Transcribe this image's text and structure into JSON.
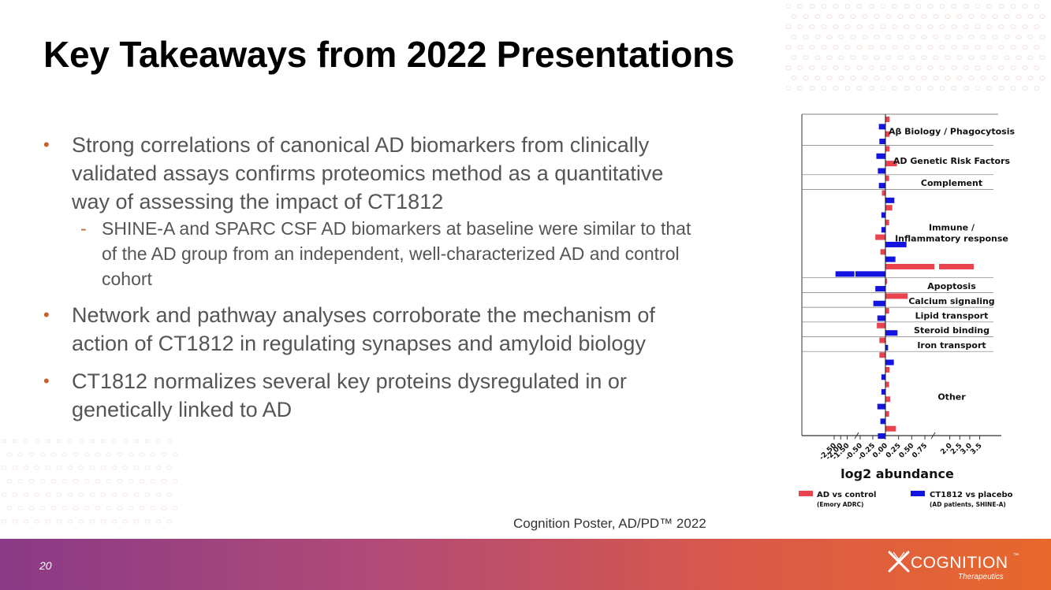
{
  "slide": {
    "title": "Key Takeaways from 2022 Presentations",
    "bullets": [
      {
        "text": "Strong correlations of canonical AD biomarkers from clinically validated assays confirms proteomics method as a quantitative way of assessing the impact of CT1812",
        "sub": "SHINE-A and SPARC CSF AD biomarkers at baseline were similar to that of the AD group from an independent, well-characterized AD and control cohort"
      },
      {
        "text": "Network and pathway analyses corroborate the mechanism of action of CT1812 in regulating synapses and amyloid biology"
      },
      {
        "text": "CT1812 normalizes several key proteins dysregulated in or genetically linked to AD"
      }
    ],
    "bullet_mark": "•",
    "sub_mark": "-",
    "citation": "Cognition Poster, AD/PD™ 2022",
    "slide_number": "20"
  },
  "footer": {
    "logo_name": "COGNITION",
    "logo_tm": "™",
    "logo_sub": "Therapeutics"
  },
  "colors": {
    "accent_bullet": "#c4612e",
    "ad_vs_control": "#e8434e",
    "ct1812_vs_placebo": "#1414e0",
    "footer_start": "#8a3a86",
    "footer_end": "#e8682c"
  },
  "chart_data": {
    "type": "bar",
    "orientation": "horizontal",
    "xlabel": "log2 abundance",
    "xticks": [
      "-2.50",
      "-2.00",
      "-1.50",
      "-0.50",
      "-0.25",
      "0.00",
      "0.25",
      "0.50",
      "0.75",
      "2.0",
      "2.5",
      "3.0",
      "3.5"
    ],
    "axis_breaks": true,
    "legend": {
      "position": "bottom",
      "entries": [
        {
          "name": "AD vs control",
          "note": "(Emory ADRC)",
          "color": "#e8434e"
        },
        {
          "name": "CT1812 vs placebo",
          "note": "(AD patients, SHINE-A)",
          "color": "#1414e0"
        }
      ]
    },
    "categories": [
      {
        "label": "Aβ Biology / Phagocytosis",
        "rows": [
          {
            "s": "r",
            "v": 0.08
          },
          {
            "s": "b",
            "v": -0.13
          },
          {
            "s": "r",
            "v": 0.08
          },
          {
            "s": "b",
            "v": -0.12
          }
        ]
      },
      {
        "label": "AD Genetic Risk Factors",
        "rows": [
          {
            "s": "r",
            "v": 0.08
          },
          {
            "s": "b",
            "v": -0.18
          },
          {
            "s": "r",
            "v": 0.22
          },
          {
            "s": "b",
            "v": -0.15
          }
        ]
      },
      {
        "label": "Complement",
        "rows": [
          {
            "s": "r",
            "v": 0.07
          },
          {
            "s": "b",
            "v": -0.13
          }
        ]
      },
      {
        "label": "Immune / Inflammatory response",
        "rows": [
          {
            "s": "r",
            "v": -0.07
          },
          {
            "s": "b",
            "v": 0.17
          },
          {
            "s": "r",
            "v": 0.13
          },
          {
            "s": "b",
            "v": -0.08
          },
          {
            "s": "r",
            "v": 0.07
          },
          {
            "s": "b",
            "v": -0.08
          },
          {
            "s": "r",
            "v": -0.2
          },
          {
            "s": "b",
            "v": 0.4
          },
          {
            "s": "r",
            "v": -0.1
          },
          {
            "s": "b",
            "v": 0.19
          },
          {
            "s": "r",
            "v": 3.2
          },
          {
            "s": "b",
            "v": -2.4
          }
        ]
      },
      {
        "label": "Apoptosis",
        "rows": [
          {
            "s": "r",
            "v": 0.03
          },
          {
            "s": "b",
            "v": -0.2
          }
        ]
      },
      {
        "label": "Calcium signaling",
        "rows": [
          {
            "s": "r",
            "v": 0.42
          },
          {
            "s": "b",
            "v": -0.24
          }
        ]
      },
      {
        "label": "Lipid transport",
        "rows": [
          {
            "s": "r",
            "v": 0.07
          },
          {
            "s": "b",
            "v": -0.16
          }
        ]
      },
      {
        "label": "Steroid binding",
        "rows": [
          {
            "s": "r",
            "v": -0.17
          },
          {
            "s": "b",
            "v": 0.23
          }
        ]
      },
      {
        "label": "Iron transport",
        "rows": [
          {
            "s": "r",
            "v": -0.12
          },
          {
            "s": "b",
            "v": 0.05
          }
        ]
      },
      {
        "label": "Other",
        "rows": [
          {
            "s": "r",
            "v": -0.12
          },
          {
            "s": "b",
            "v": 0.16
          },
          {
            "s": "r",
            "v": 0.08
          },
          {
            "s": "b",
            "v": -0.08
          },
          {
            "s": "r",
            "v": 0.07
          },
          {
            "s": "b",
            "v": -0.08
          },
          {
            "s": "r",
            "v": 0.09
          },
          {
            "s": "b",
            "v": -0.16
          },
          {
            "s": "r",
            "v": 0.07
          },
          {
            "s": "b",
            "v": -0.1
          },
          {
            "s": "r",
            "v": 0.2
          },
          {
            "s": "b",
            "v": -0.15
          }
        ]
      }
    ]
  }
}
